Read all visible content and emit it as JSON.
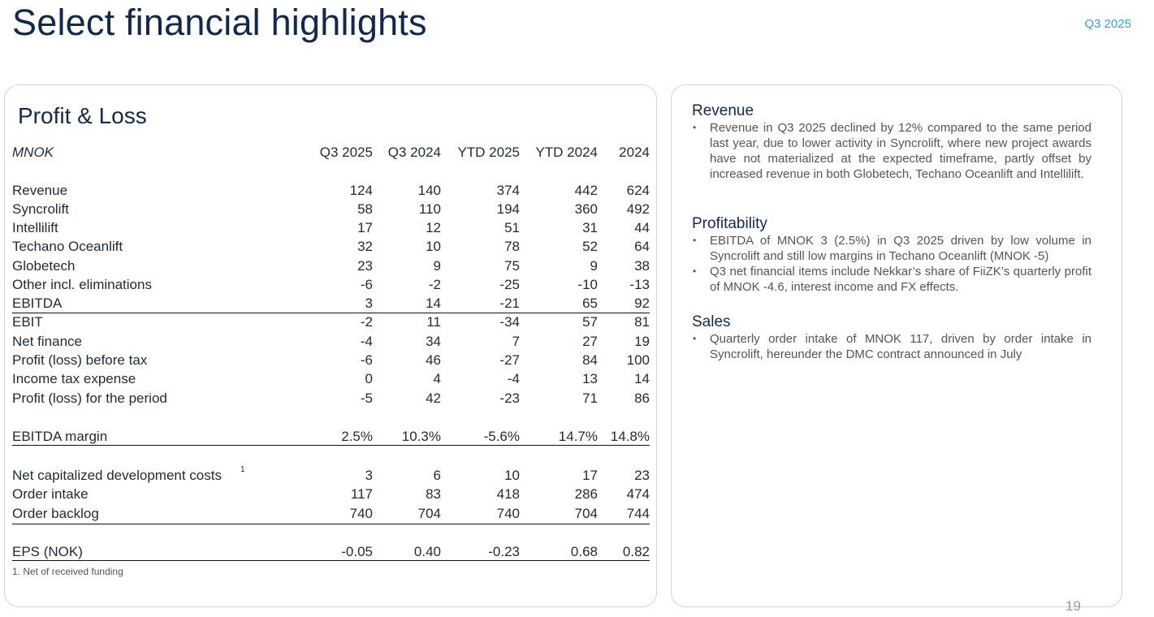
{
  "header": {
    "title": "Select financial highlights",
    "period": "Q3 2025"
  },
  "pnl": {
    "title": "Profit & Loss",
    "unit": "MNOK",
    "columns": [
      "Q3 2025",
      "Q3 2024",
      "YTD 2025",
      "YTD 2024",
      "2024"
    ],
    "rows": [
      {
        "label": "Revenue",
        "values": [
          "124",
          "140",
          "374",
          "442",
          "624"
        ]
      },
      {
        "label": "Syncrolift",
        "values": [
          "58",
          "110",
          "194",
          "360",
          "492"
        ]
      },
      {
        "label": "Intellilift",
        "values": [
          "17",
          "12",
          "51",
          "31",
          "44"
        ]
      },
      {
        "label": "Techano Oceanlift",
        "values": [
          "32",
          "10",
          "78",
          "52",
          "64"
        ]
      },
      {
        "label": "Globetech",
        "values": [
          "23",
          "9",
          "75",
          "9",
          "38"
        ]
      },
      {
        "label": "Other incl. eliminations",
        "values": [
          "-6",
          "-2",
          "-25",
          "-10",
          "-13"
        ]
      },
      {
        "label": "EBITDA",
        "values": [
          "3",
          "14",
          "-21",
          "65",
          "92"
        ]
      },
      {
        "label": "EBIT",
        "values": [
          "-2",
          "11",
          "-34",
          "57",
          "81"
        ]
      },
      {
        "label": "Net finance",
        "values": [
          "-4",
          "34",
          "7",
          "27",
          "19"
        ]
      },
      {
        "label": "Profit (loss) before tax",
        "values": [
          "-6",
          "46",
          "-27",
          "84",
          "100"
        ]
      },
      {
        "label": "Income tax expense",
        "values": [
          "0",
          "4",
          "-4",
          "13",
          "14"
        ]
      },
      {
        "label": "Profit (loss) for the period",
        "values": [
          "-5",
          "42",
          "-23",
          "71",
          "86"
        ]
      },
      {
        "label": "EBITDA margin",
        "values": [
          "2.5%",
          "10.3%",
          "-5.6%",
          "14.7%",
          "14.8%"
        ]
      },
      {
        "label": "Net capitalized development costs",
        "sup": "1",
        "values": [
          "3",
          "6",
          "10",
          "17",
          "23"
        ]
      },
      {
        "label": "Order intake",
        "values": [
          "117",
          "83",
          "418",
          "286",
          "474"
        ]
      },
      {
        "label": "Order backlog",
        "values": [
          "740",
          "704",
          "740",
          "704",
          "744"
        ]
      },
      {
        "label": "EPS (NOK)",
        "values": [
          "-0.05",
          "0.40",
          "-0.23",
          "0.68",
          "0.82"
        ]
      }
    ],
    "footnote": "1. Net of received funding"
  },
  "commentary": [
    {
      "heading": "Revenue",
      "bullets": [
        "Revenue in Q3 2025 declined by 12% compared to the same period last year, due to lower activity in Syncrolift, where new project awards have not materialized at the expected timeframe, partly offset by increased revenue in both Globetech, Techano Oceanlift and Intellilift."
      ]
    },
    {
      "heading": "Profitability",
      "bullets": [
        "EBITDA of MNOK 3 (2.5%) in Q3 2025  driven by low volume in Syncrolift and still low margins in Techano Oceanlift (MNOK -5)",
        "Q3 net financial items include Nekkar’s share of FiiZK’s quarterly profit of MNOK -4.6, interest income and FX effects."
      ]
    },
    {
      "heading": "Sales",
      "bullets": [
        "Quarterly order intake of MNOK 117, driven by order intake in Syncrolift, hereunder the DMC contract announced in July"
      ]
    }
  ],
  "page_number": "19"
}
